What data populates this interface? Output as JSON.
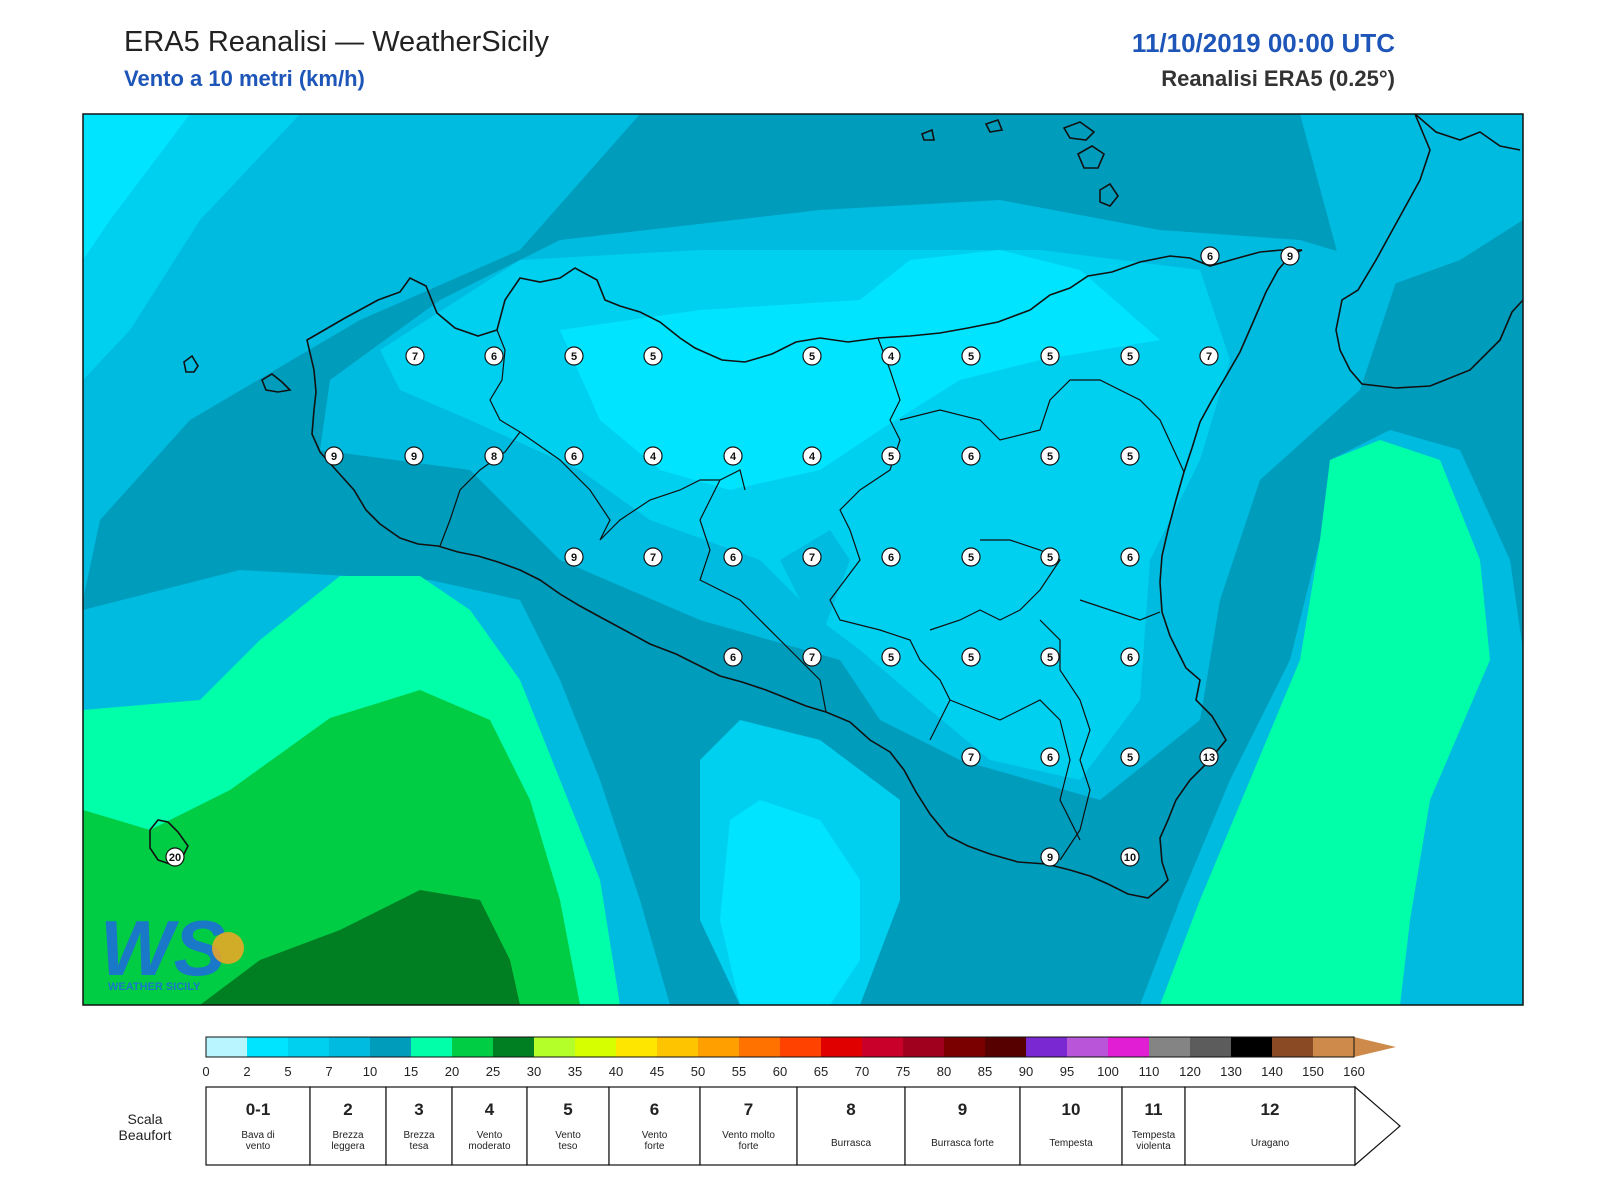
{
  "header": {
    "title": "ERA5 Reanalisi — WeatherSicily",
    "subtitle": "Vento a 10 metri (km/h)",
    "datetime": "11/10/2019 00:00 UTC",
    "dataset": "Reanalisi ERA5 (0.25°)"
  },
  "logo": {
    "letters": "WS",
    "text": "WEATHER SICILY"
  },
  "colors": {
    "band_0_2": "#b8f5ff",
    "band_2_5": "#00e4ff",
    "band_5_7": "#00d0f0",
    "band_7_10": "#00bbe0",
    "band_10_15": "#009cbc",
    "band_15_20": "#00ffa8",
    "band_20_25": "#00cc44",
    "band_25_30": "#007e22"
  },
  "station_values": [
    {
      "row": 0,
      "values": [
        "6",
        "9"
      ]
    },
    {
      "row": 1,
      "values": [
        "7",
        "6",
        "5",
        "5",
        "5",
        "4",
        "5",
        "5",
        "5",
        "7"
      ]
    },
    {
      "row": 2,
      "values": [
        "9",
        "9",
        "8",
        "6",
        "4",
        "4",
        "4",
        "5",
        "6",
        "5",
        "5"
      ]
    },
    {
      "row": 3,
      "values": [
        "9",
        "7",
        "6",
        "7",
        "6",
        "5",
        "5",
        "6"
      ]
    },
    {
      "row": 4,
      "values": [
        "6",
        "7",
        "5",
        "5",
        "5",
        "6"
      ]
    },
    {
      "row": 5,
      "values": [
        "7",
        "6",
        "5",
        "13"
      ]
    },
    {
      "row": 6,
      "values": [
        "9",
        "10"
      ]
    },
    {
      "row": 7,
      "values": [
        "20"
      ]
    }
  ],
  "legend": {
    "ticks": [
      "0",
      "2",
      "5",
      "7",
      "10",
      "15",
      "20",
      "25",
      "30",
      "35",
      "40",
      "45",
      "50",
      "55",
      "60",
      "65",
      "70",
      "75",
      "80",
      "85",
      "90",
      "95",
      "100",
      "110",
      "120",
      "130",
      "140",
      "150",
      "160"
    ],
    "colors": [
      "#b8f5ff",
      "#00e4ff",
      "#00d0f0",
      "#00bbe0",
      "#009cbc",
      "#00ffa8",
      "#00cc44",
      "#007e22",
      "#b4ff2a",
      "#d6ff00",
      "#ffe600",
      "#ffc400",
      "#ff9f00",
      "#ff7200",
      "#ff4200",
      "#e00000",
      "#c8002a",
      "#a0001e",
      "#7a0000",
      "#560000",
      "#7a28d2",
      "#b855d8",
      "#e21ed4",
      "#848484",
      "#5c5c5c",
      "#000000",
      "#8a4a24",
      "#cd8a4a"
    ]
  },
  "beaufort": {
    "label": "Scala Beaufort",
    "scale": [
      {
        "num": "0-1",
        "desc": "Bava di vento"
      },
      {
        "num": "2",
        "desc": "Brezza leggera"
      },
      {
        "num": "3",
        "desc": "Brezza tesa"
      },
      {
        "num": "4",
        "desc": "Vento moderato"
      },
      {
        "num": "5",
        "desc": "Vento teso"
      },
      {
        "num": "6",
        "desc": "Vento forte"
      },
      {
        "num": "7",
        "desc": "Vento molto forte"
      },
      {
        "num": "8",
        "desc": "Burrasca"
      },
      {
        "num": "9",
        "desc": "Burrasca forte"
      },
      {
        "num": "10",
        "desc": "Tempesta"
      },
      {
        "num": "11",
        "desc": "Tempesta violenta"
      },
      {
        "num": "12",
        "desc": "Uragano"
      }
    ]
  }
}
